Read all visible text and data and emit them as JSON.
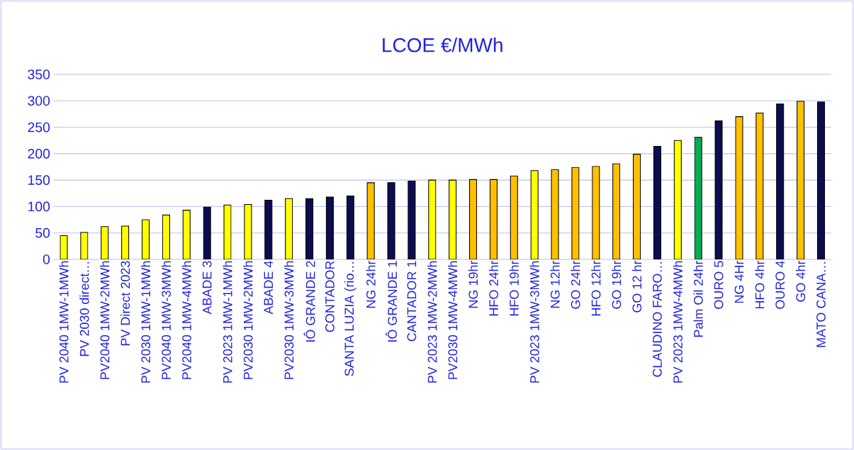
{
  "chart_data": {
    "type": "bar",
    "title": "LCOE €/MWh",
    "categories": [
      "PV 2040 1MW-1MWh",
      "PV 2030 direct…",
      "PV2040 1MW-2MWh",
      "PV Direct 2023",
      "PV 2030 1MW-1MWh",
      "PV2040 1MW-3MWh",
      "PV2040 1MW-4MWh",
      "ABADE 3",
      "PV 2023 1MW-1MWh",
      "PV2030 1MW-2MWh",
      "ABADE 4",
      "PV2030 1MW-3MWh",
      "IÔ GRANDE 2",
      "CONTADOR",
      "SANTA LUZIA (rio…",
      "NG 24hr",
      "IÔ GRANDE 1",
      "CANTADOR 1",
      "PV 2023 1MW-2MWh",
      "PV2030 1MW-4MWh",
      "NG 19hr",
      "HFO 24hr",
      "HFO 19hr",
      "PV 2023 1MW-3MWh",
      "NG 12hr",
      "GO 24hr",
      "HFO 12hr",
      "GO 19hr",
      "GO 12 hr",
      "CLAUDINO FARO…",
      "PV 2023 1MW-4MWh",
      "Palm Oil 24hr",
      "OURO 5",
      "NG 4Hr",
      "HFO 4hr",
      "OURO 4",
      "GO 4hr",
      "MATO CANA…"
    ],
    "values": [
      45,
      51,
      62,
      63,
      75,
      84,
      93,
      99,
      103,
      104,
      112,
      115,
      115,
      118,
      120,
      145,
      145,
      148,
      150,
      150,
      151,
      151,
      158,
      168,
      170,
      174,
      176,
      181,
      199,
      214,
      225,
      231,
      262,
      270,
      277,
      294,
      299,
      298
    ],
    "colors": [
      "#ffff00",
      "#ffff00",
      "#ffff00",
      "#ffff00",
      "#ffff00",
      "#ffff00",
      "#ffff00",
      "#0c0c50",
      "#ffff00",
      "#ffff00",
      "#0c0c50",
      "#ffff00",
      "#0c0c50",
      "#0c0c50",
      "#0c0c50",
      "#ffc000",
      "#0c0c50",
      "#0c0c50",
      "#ffff00",
      "#ffff00",
      "#ffc000",
      "#ffc000",
      "#ffc000",
      "#ffff00",
      "#ffc000",
      "#ffc000",
      "#ffc000",
      "#ffc000",
      "#ffc000",
      "#0c0c50",
      "#ffff00",
      "#00b050",
      "#0c0c50",
      "#ffc000",
      "#ffc000",
      "#0c0c50",
      "#ffc000",
      "#0c0c50"
    ],
    "ylim": [
      0,
      350
    ],
    "yticks": [
      0,
      50,
      100,
      150,
      200,
      250,
      300,
      350
    ],
    "grid": "y"
  }
}
